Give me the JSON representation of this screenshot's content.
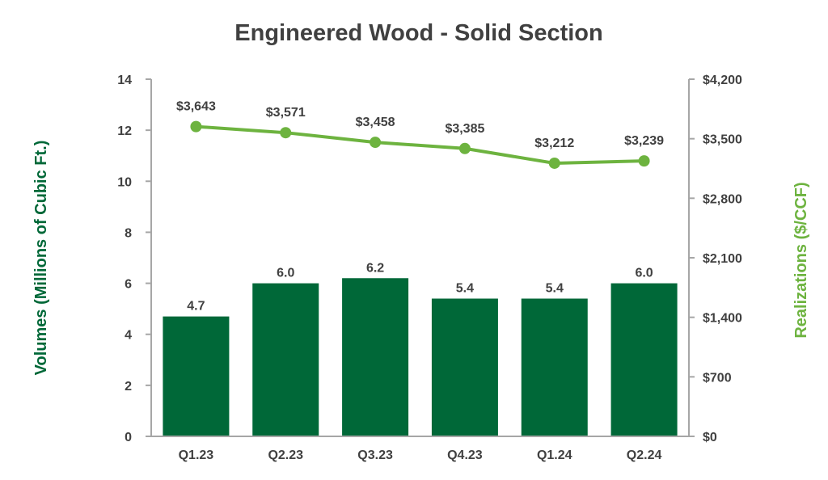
{
  "chart_data": {
    "type": "bar+line",
    "title": "Engineered Wood - Solid Section",
    "categories": [
      "Q1.23",
      "Q2.23",
      "Q3.23",
      "Q4.23",
      "Q1.24",
      "Q2.24"
    ],
    "series": [
      {
        "name": "Volumes",
        "type": "bar",
        "axis": "left",
        "values": [
          4.7,
          6.0,
          6.2,
          5.4,
          5.4,
          6.0
        ],
        "labels": [
          "4.7",
          "6.0",
          "6.2",
          "5.4",
          "5.4",
          "6.0"
        ],
        "color": "#006838"
      },
      {
        "name": "Realizations",
        "type": "line",
        "axis": "right",
        "values": [
          3643,
          3571,
          3458,
          3385,
          3212,
          3239
        ],
        "labels": [
          "$3,643",
          "$3,571",
          "$3,458",
          "$3,385",
          "$3,212",
          "$3,239"
        ],
        "color": "#6DB33F"
      }
    ],
    "ylabel": "Volumes (Millions of Cubic Ft.)",
    "ylabel_color": "#006838",
    "ylim": [
      0,
      14
    ],
    "yticks": [
      "0",
      "2",
      "4",
      "6",
      "8",
      "10",
      "12",
      "14"
    ],
    "y2label": "Realizations ($/CCF)",
    "y2label_color": "#6DB33F",
    "y2lim": [
      0,
      4200
    ],
    "y2ticks": [
      "$0",
      "$700",
      "$1,400",
      "$2,100",
      "$2,800",
      "$3,500",
      "$4,200"
    ],
    "grid": false,
    "legend": "none"
  }
}
